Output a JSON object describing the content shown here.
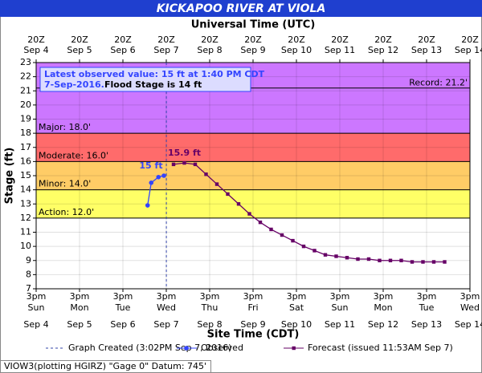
{
  "chart_data": {
    "type": "hydrograph",
    "title": "KICKAPOO RIVER AT VIOLA",
    "top_axis_label": "Universal Time (UTC)",
    "x_label": "Site Time (CDT)",
    "y_label": "Stage (ft)",
    "ylim": [
      7,
      23
    ],
    "yticks": [
      7,
      8,
      9,
      10,
      11,
      12,
      13,
      14,
      15,
      16,
      17,
      18,
      19,
      20,
      21,
      22,
      23
    ],
    "xlim": [
      "2016-09-04T15:00",
      "2016-09-14T15:00"
    ],
    "xticks": [
      "2016-09-04T15:00",
      "2016-09-05T15:00",
      "2016-09-06T15:00",
      "2016-09-07T15:00",
      "2016-09-08T15:00",
      "2016-09-09T15:00",
      "2016-09-10T15:00",
      "2016-09-11T15:00",
      "2016-09-12T15:00",
      "2016-09-13T15:00",
      "2016-09-14T15:00"
    ],
    "bottom_time_labels": [
      "3pm",
      "3pm",
      "3pm",
      "3pm",
      "3pm",
      "3pm",
      "3pm",
      "3pm",
      "3pm",
      "3pm",
      "3pm"
    ],
    "bottom_day_labels": [
      "Sun",
      "Mon",
      "Tue",
      "Wed",
      "Thu",
      "Fri",
      "Sat",
      "Sun",
      "Mon",
      "Tue",
      "Wed"
    ],
    "bottom_date_labels": [
      "Sep 4",
      "Sep 5",
      "Sep 6",
      "Sep 7",
      "Sep 8",
      "Sep 9",
      "Sep 10",
      "Sep 11",
      "Sep 12",
      "Sep 13",
      "Sep 14"
    ],
    "top_time_labels": [
      "20Z",
      "20Z",
      "20Z",
      "20Z",
      "20Z",
      "20Z",
      "20Z",
      "20Z",
      "20Z",
      "20Z",
      "20Z"
    ],
    "top_date_labels": [
      "Sep 4",
      "Sep 5",
      "Sep 6",
      "Sep 7",
      "Sep 8",
      "Sep 9",
      "Sep 10",
      "Sep 11",
      "Sep 12",
      "Sep 13",
      "Sep 14"
    ],
    "grid": true,
    "flood_categories": [
      {
        "label": "Action: 12.0'",
        "stage": 12,
        "color": "#ffff66"
      },
      {
        "label": "Minor: 14.0'",
        "stage": 14,
        "color": "#ffcc66"
      },
      {
        "label": "Moderate: 16.0'",
        "stage": 16,
        "color": "#ff6b6b"
      },
      {
        "label": "Major: 18.0'",
        "stage": 18,
        "color": "#cc77ff"
      }
    ],
    "record": {
      "label": "Record: 21.2'",
      "stage": 21.2
    },
    "info_line1": "Latest observed value: 15 ft at 1:40 PM CDT",
    "info_date": "7-Sep-2016.",
    "info_flood": "Flood Stage is 14 ft",
    "graph_created": {
      "x": "2016-09-07T15:02",
      "name": "Graph Created (3:02PM Sep 7, 2016)"
    },
    "series": [
      {
        "name": "Observed",
        "color": "#3344ff",
        "point_label": "15 ft",
        "x": [
          "2016-09-07T04:40",
          "2016-09-07T06:40",
          "2016-09-07T10:40",
          "2016-09-07T13:40"
        ],
        "values": [
          12.9,
          14.5,
          14.9,
          15.0
        ]
      },
      {
        "name": "Forecast (issued 11:53AM Sep 7)",
        "color": "#660066",
        "point_label": "15.9 ft",
        "x": [
          "2016-09-07T19:00",
          "2016-09-08T01:00",
          "2016-09-08T07:00",
          "2016-09-08T13:00",
          "2016-09-08T19:00",
          "2016-09-09T01:00",
          "2016-09-09T07:00",
          "2016-09-09T13:00",
          "2016-09-09T19:00",
          "2016-09-10T01:00",
          "2016-09-10T07:00",
          "2016-09-10T13:00",
          "2016-09-10T19:00",
          "2016-09-11T01:00",
          "2016-09-11T07:00",
          "2016-09-11T13:00",
          "2016-09-11T19:00",
          "2016-09-12T01:00",
          "2016-09-12T07:00",
          "2016-09-12T13:00",
          "2016-09-12T19:00",
          "2016-09-13T01:00",
          "2016-09-13T07:00",
          "2016-09-13T13:00",
          "2016-09-13T19:00",
          "2016-09-14T01:00"
        ],
        "values": [
          15.8,
          15.9,
          15.8,
          15.1,
          14.4,
          13.7,
          13.0,
          12.3,
          11.7,
          11.2,
          10.8,
          10.4,
          10.0,
          9.7,
          9.4,
          9.3,
          9.2,
          9.1,
          9.1,
          9.0,
          9.0,
          9.0,
          8.9,
          8.9,
          8.9,
          8.9
        ]
      }
    ],
    "footer": "VIOW3(plotting HGIRZ) \"Gage 0\" Datum: 745'"
  }
}
